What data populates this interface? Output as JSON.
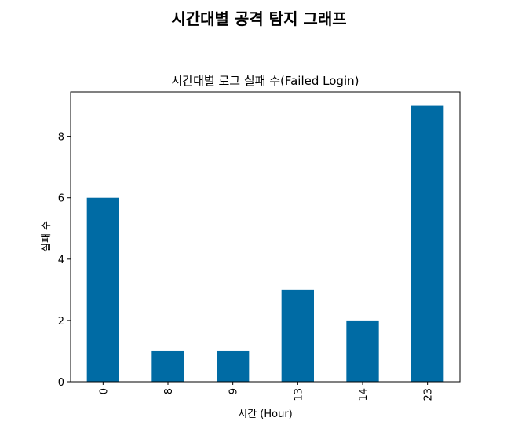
{
  "figure": {
    "suptitle": "시간대별 공격 탐지 그래프"
  },
  "chart_data": {
    "type": "bar",
    "title": "시간대별 로그 실패 수(Failed Login)",
    "xlabel": "시간 (Hour)",
    "ylabel": "실패 수",
    "categories": [
      "0",
      "8",
      "9",
      "13",
      "14",
      "23"
    ],
    "values": [
      6,
      1,
      1,
      3,
      2,
      9
    ],
    "ylim": [
      0,
      9.45
    ],
    "yticks": [
      0,
      2,
      4,
      6,
      8
    ],
    "bar_color": "#006ba4",
    "xtick_rotation": 90,
    "grid": false,
    "legend": "none"
  }
}
